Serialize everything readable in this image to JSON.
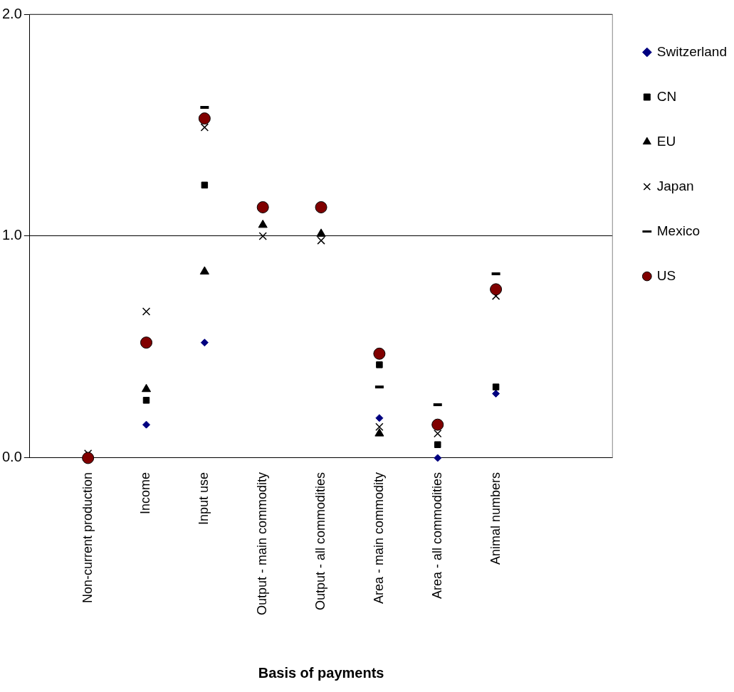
{
  "chart_data": {
    "type": "scatter",
    "xlabel": "Basis of payments",
    "categories": [
      null,
      "Non-current production",
      "Income",
      "Input use",
      "Output - main commodity",
      "Output - all commodities",
      "Area - main commodity",
      "Area - all commodities",
      "Animal numbers",
      null,
      null
    ],
    "ylim": [
      0,
      2
    ],
    "yticks": [
      {
        "value": 0,
        "label": "0.0"
      },
      {
        "value": 1,
        "label": "1.0"
      },
      {
        "value": 2,
        "label": "2.0"
      }
    ],
    "grid": "y",
    "legend": "right",
    "series": [
      {
        "name": "Switzerland",
        "color": "#000080",
        "marker": "diamond",
        "values": [
          null,
          null,
          0.15,
          0.52,
          null,
          null,
          0.18,
          0,
          0.29,
          null,
          null
        ]
      },
      {
        "name": "CN",
        "color": "#000000",
        "marker": "square",
        "values": [
          null,
          null,
          0.26,
          1.23,
          null,
          null,
          0.42,
          0.06,
          0.32,
          null,
          null
        ]
      },
      {
        "name": "EU",
        "color": "#000000",
        "marker": "triangle",
        "values": [
          null,
          null,
          0.31,
          0.84,
          1.05,
          1.01,
          0.11,
          null,
          null,
          null,
          null
        ]
      },
      {
        "name": "Japan",
        "color": "#000000",
        "marker": "cross",
        "values": [
          null,
          0.02,
          0.66,
          1.49,
          1.0,
          0.98,
          0.14,
          0.11,
          0.73,
          null,
          null
        ]
      },
      {
        "name": "Mexico",
        "color": "#000000",
        "values": [
          null,
          null,
          null,
          1.58,
          null,
          null,
          0.32,
          0.24,
          0.83,
          null,
          null
        ]
      },
      {
        "name": "US",
        "color": "#800000",
        "marker": "circle",
        "values": [
          null,
          0,
          0.52,
          1.53,
          1.13,
          1.13,
          0.47,
          0.15,
          0.76,
          null,
          null
        ]
      }
    ]
  }
}
